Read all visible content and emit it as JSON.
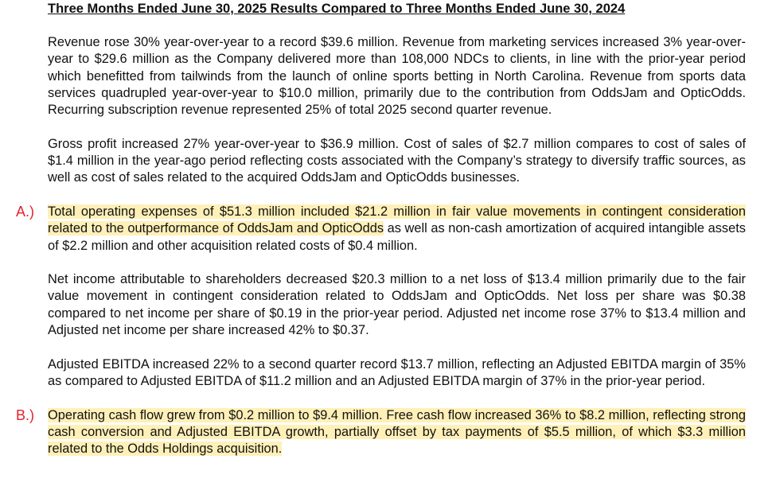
{
  "title": "Three Months Ended June 30, 2025 Results Compared to Three Months Ended June 30, 2024",
  "paragraphs": [
    {
      "text": "Revenue rose 30% year-over-year to a record $39.6 million. Revenue from marketing services increased 3% year-over-year to $29.6 million as the Company delivered more than 108,000 NDCs to clients, in line with the prior-year period which benefitted from tailwinds from the launch of online sports betting in North Carolina. Revenue from sports data services quadrupled year-over-year to $10.0 million, primarily due to the contribution from OddsJam and OpticOdds. Recurring subscription revenue represented 25% of total 2025 second quarter revenue."
    },
    {
      "text": "Gross profit increased 27% year-over-year to $36.9 million. Cost of sales of $2.7 million compares to cost of sales of $1.4 million in the year-ago period reflecting costs associated with the Company’s strategy to diversify traffic sources, as well as cost of sales related to the acquired OddsJam and OpticOdds businesses."
    },
    {
      "label": "A.)",
      "highlighted": "Total operating expenses of $51.3 million included $21.2 million in fair value movements in contingent consideration related to the outperformance of OddsJam and OpticOdds",
      "text": " as well as non-cash amortization of acquired intangible assets of $2.2 million and other acquisition related costs of $0.4 million."
    },
    {
      "text": "Net income attributable to shareholders decreased $20.3 million to a net loss of $13.4 million primarily due to the fair value movement in contingent consideration related to OddsJam and OpticOdds. Net loss per share was $0.38 compared to net income per share of $0.19 in the prior-year period. Adjusted net income rose 37% to $13.4 million and Adjusted net income per share increased 42% to $0.37."
    },
    {
      "text": "Adjusted EBITDA increased 22% to a second quarter record $13.7 million, reflecting an Adjusted EBITDA margin of 35% as compared to Adjusted EBITDA of $11.2 million and an Adjusted EBITDA margin of 37% in the prior-year period."
    },
    {
      "label": "B.)",
      "highlighted": "Operating cash flow grew from $0.2 million to $9.4 million. Free cash flow increased 36% to $8.2 million, reflecting strong cash conversion and Adjusted EBITDA growth, partially offset by tax payments of $5.5 million, of which $3.3 million related to the Odds Holdings acquisition."
    }
  ]
}
